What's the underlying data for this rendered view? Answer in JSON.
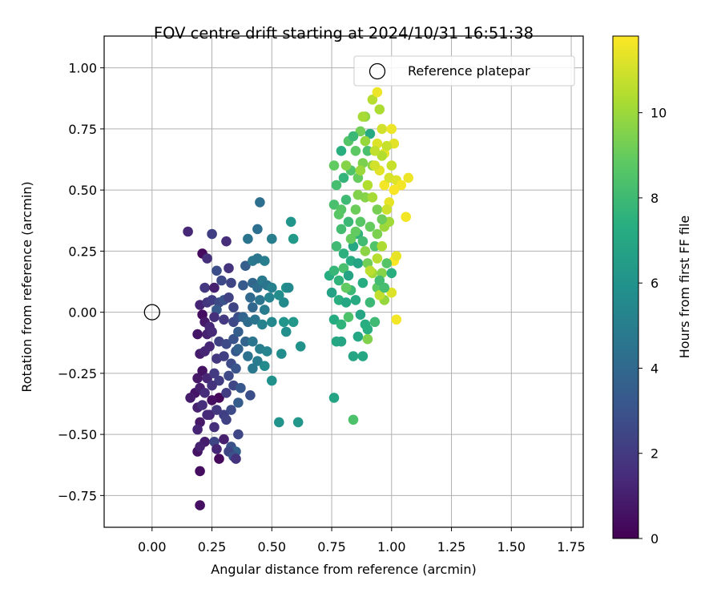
{
  "chart_data": {
    "type": "scatter",
    "title": "FOV centre drift starting at 2024/10/31 16:51:38",
    "xlabel": "Angular distance from reference (arcmin)",
    "ylabel": "Rotation from reference (arcmin)",
    "xlim": [
      -0.2,
      1.8
    ],
    "ylim": [
      -0.88,
      1.13
    ],
    "x_ticks": [
      "0.00",
      "0.25",
      "0.50",
      "0.75",
      "1.00",
      "1.25",
      "1.50",
      "1.75"
    ],
    "y_ticks": [
      "−0.75",
      "−0.50",
      "−0.25",
      "0.00",
      "0.25",
      "0.50",
      "0.75",
      "1.00"
    ],
    "grid": true,
    "legend": {
      "placement": "top-right",
      "entries": [
        "Reference platepar"
      ]
    },
    "colorbar": {
      "label": "Hours from first FF file",
      "range": [
        0,
        11.8
      ],
      "ticks": [
        "0",
        "2",
        "4",
        "6",
        "8",
        "10"
      ],
      "colormap": "viridis"
    },
    "reference_point": {
      "x": 0.0,
      "y": 0.0,
      "label": "Reference platepar"
    },
    "points": [
      [
        0.15,
        0.33,
        1.3
      ],
      [
        0.21,
        0.24,
        0.3
      ],
      [
        0.23,
        0.22,
        1.6
      ],
      [
        0.25,
        0.32,
        2.2
      ],
      [
        0.27,
        0.17,
        2.8
      ],
      [
        0.31,
        0.29,
        1.5
      ],
      [
        0.32,
        0.18,
        1.7
      ],
      [
        0.22,
        0.1,
        1.9
      ],
      [
        0.26,
        0.1,
        1.0
      ],
      [
        0.29,
        0.13,
        2.6
      ],
      [
        0.33,
        0.12,
        2.4
      ],
      [
        0.2,
        0.03,
        1.2
      ],
      [
        0.23,
        0.04,
        1.8
      ],
      [
        0.25,
        0.05,
        2.1
      ],
      [
        0.28,
        0.04,
        2.6
      ],
      [
        0.3,
        0.05,
        3.0
      ],
      [
        0.32,
        0.06,
        2.3
      ],
      [
        0.34,
        0.02,
        2.4
      ],
      [
        0.27,
        0.01,
        3.3
      ],
      [
        0.21,
        -0.01,
        0.4
      ],
      [
        0.22,
        -0.04,
        0.8
      ],
      [
        0.24,
        -0.06,
        1.3
      ],
      [
        0.26,
        -0.02,
        1.6
      ],
      [
        0.3,
        -0.03,
        2.0
      ],
      [
        0.34,
        -0.04,
        2.5
      ],
      [
        0.36,
        -0.02,
        2.8
      ],
      [
        0.19,
        -0.09,
        0.7
      ],
      [
        0.23,
        -0.09,
        1.1
      ],
      [
        0.25,
        -0.08,
        1.4
      ],
      [
        0.28,
        -0.12,
        2.3
      ],
      [
        0.31,
        -0.13,
        2.6
      ],
      [
        0.34,
        -0.11,
        3.0
      ],
      [
        0.2,
        -0.17,
        0.9
      ],
      [
        0.22,
        -0.16,
        1.2
      ],
      [
        0.24,
        -0.14,
        1.3
      ],
      [
        0.27,
        -0.19,
        1.9
      ],
      [
        0.3,
        -0.18,
        2.2
      ],
      [
        0.33,
        -0.21,
        2.7
      ],
      [
        0.35,
        -0.16,
        3.2
      ],
      [
        0.19,
        -0.27,
        0.8
      ],
      [
        0.21,
        -0.24,
        0.6
      ],
      [
        0.23,
        -0.27,
        1.3
      ],
      [
        0.26,
        -0.25,
        2.0
      ],
      [
        0.28,
        -0.28,
        2.1
      ],
      [
        0.32,
        -0.26,
        2.6
      ],
      [
        0.35,
        -0.23,
        3.1
      ],
      [
        0.18,
        -0.33,
        0.7
      ],
      [
        0.2,
        -0.31,
        1.0
      ],
      [
        0.22,
        -0.33,
        1.5
      ],
      [
        0.25,
        -0.3,
        1.7
      ],
      [
        0.28,
        -0.35,
        0.2
      ],
      [
        0.31,
        -0.33,
        2.1
      ],
      [
        0.34,
        -0.3,
        2.5
      ],
      [
        0.37,
        -0.31,
        3.2
      ],
      [
        0.16,
        -0.35,
        0.9
      ],
      [
        0.19,
        -0.39,
        1.1
      ],
      [
        0.21,
        -0.38,
        1.6
      ],
      [
        0.24,
        -0.42,
        1.2
      ],
      [
        0.27,
        -0.4,
        1.9
      ],
      [
        0.3,
        -0.42,
        2.2
      ],
      [
        0.33,
        -0.4,
        2.6
      ],
      [
        0.36,
        -0.37,
        3.4
      ],
      [
        0.2,
        -0.45,
        0.8
      ],
      [
        0.23,
        -0.42,
        1.4
      ],
      [
        0.26,
        -0.47,
        1.6
      ],
      [
        0.19,
        -0.48,
        1.2
      ],
      [
        0.22,
        -0.53,
        0.9
      ],
      [
        0.26,
        -0.53,
        2.4
      ],
      [
        0.3,
        -0.52,
        1.0
      ],
      [
        0.33,
        -0.55,
        2.9
      ],
      [
        0.35,
        -0.57,
        3.6
      ],
      [
        0.19,
        -0.57,
        0.6
      ],
      [
        0.2,
        -0.55,
        1.1
      ],
      [
        0.27,
        -0.56,
        1.2
      ],
      [
        0.32,
        -0.57,
        2.4
      ],
      [
        0.34,
        -0.59,
        2.9
      ],
      [
        0.28,
        -0.6,
        0.3
      ],
      [
        0.35,
        -0.6,
        1.7
      ],
      [
        0.2,
        -0.65,
        0.4
      ],
      [
        0.2,
        -0.79,
        0.5
      ],
      [
        0.36,
        -0.5,
        2.5
      ],
      [
        0.31,
        -0.44,
        2.3
      ],
      [
        0.41,
        -0.34,
        2.8
      ],
      [
        0.25,
        -0.36,
        0.5
      ],
      [
        0.39,
        0.19,
        3.5
      ],
      [
        0.4,
        0.3,
        4.5
      ],
      [
        0.44,
        0.34,
        4.3
      ],
      [
        0.45,
        0.45,
        4.3
      ],
      [
        0.5,
        0.3,
        5.0
      ],
      [
        0.42,
        0.21,
        4.7
      ],
      [
        0.44,
        0.22,
        4.6
      ],
      [
        0.47,
        0.21,
        5.0
      ],
      [
        0.38,
        0.11,
        3.3
      ],
      [
        0.42,
        0.12,
        3.9
      ],
      [
        0.44,
        0.1,
        4.2
      ],
      [
        0.46,
        0.13,
        4.8
      ],
      [
        0.48,
        0.11,
        4.5
      ],
      [
        0.5,
        0.1,
        5.1
      ],
      [
        0.41,
        0.06,
        4.0
      ],
      [
        0.45,
        0.05,
        4.6
      ],
      [
        0.49,
        0.06,
        5.3
      ],
      [
        0.42,
        0.02,
        3.9
      ],
      [
        0.47,
        0.01,
        4.9
      ],
      [
        0.38,
        -0.02,
        3.8
      ],
      [
        0.4,
        -0.04,
        4.1
      ],
      [
        0.43,
        -0.03,
        4.5
      ],
      [
        0.46,
        -0.05,
        5.2
      ],
      [
        0.5,
        -0.04,
        5.5
      ],
      [
        0.36,
        -0.08,
        3.5
      ],
      [
        0.39,
        -0.12,
        3.8
      ],
      [
        0.42,
        -0.12,
        4.6
      ],
      [
        0.45,
        -0.15,
        5.0
      ],
      [
        0.48,
        -0.16,
        5.3
      ],
      [
        0.36,
        -0.15,
        3.7
      ],
      [
        0.4,
        -0.18,
        4.4
      ],
      [
        0.44,
        -0.2,
        4.9
      ],
      [
        0.47,
        -0.22,
        5.6
      ],
      [
        0.5,
        -0.28,
        5.9
      ],
      [
        0.42,
        -0.23,
        4.7
      ],
      [
        0.53,
        0.07,
        5.7
      ],
      [
        0.55,
        0.04,
        5.6
      ],
      [
        0.54,
        -0.17,
        5.7
      ],
      [
        0.56,
        -0.08,
        5.8
      ],
      [
        0.59,
        -0.04,
        6.2
      ],
      [
        0.56,
        0.1,
        6.0
      ],
      [
        0.57,
        0.1,
        5.5
      ],
      [
        0.55,
        -0.04,
        6.1
      ],
      [
        0.62,
        -0.14,
        6.0
      ],
      [
        0.58,
        0.37,
        6.1
      ],
      [
        0.59,
        0.3,
        6.3
      ],
      [
        0.53,
        -0.45,
        6.0
      ],
      [
        0.61,
        -0.45,
        6.2
      ],
      [
        0.74,
        0.15,
        7.3
      ],
      [
        0.76,
        0.17,
        7.8
      ],
      [
        0.78,
        0.13,
        7.6
      ],
      [
        0.8,
        0.18,
        8.3
      ],
      [
        0.82,
        0.15,
        6.8
      ],
      [
        0.75,
        0.08,
        6.7
      ],
      [
        0.78,
        0.05,
        7.4
      ],
      [
        0.81,
        0.04,
        7.0
      ],
      [
        0.83,
        0.09,
        7.9
      ],
      [
        0.76,
        -0.03,
        7.2
      ],
      [
        0.79,
        -0.05,
        7.6
      ],
      [
        0.82,
        -0.02,
        8.4
      ],
      [
        0.77,
        0.27,
        8.0
      ],
      [
        0.8,
        0.24,
        7.5
      ],
      [
        0.83,
        0.21,
        7.2
      ],
      [
        0.79,
        0.34,
        8.1
      ],
      [
        0.82,
        0.37,
        7.9
      ],
      [
        0.76,
        0.44,
        8.3
      ],
      [
        0.79,
        0.42,
        8.6
      ],
      [
        0.81,
        0.46,
        8.0
      ],
      [
        0.77,
        0.52,
        8.2
      ],
      [
        0.8,
        0.55,
        7.7
      ],
      [
        0.83,
        0.58,
        8.5
      ],
      [
        0.76,
        0.6,
        8.9
      ],
      [
        0.79,
        0.66,
        7.4
      ],
      [
        0.82,
        0.7,
        8.6
      ],
      [
        0.77,
        -0.12,
        7.0
      ],
      [
        0.79,
        -0.12,
        6.9
      ],
      [
        0.84,
        -0.18,
        6.9
      ],
      [
        0.88,
        -0.18,
        7.0
      ],
      [
        0.76,
        -0.35,
        6.8
      ],
      [
        0.84,
        -0.44,
        8.4
      ],
      [
        0.86,
        0.32,
        7.6
      ],
      [
        0.88,
        0.29,
        8.1
      ],
      [
        0.84,
        0.27,
        7.0
      ],
      [
        0.86,
        0.2,
        6.8
      ],
      [
        0.88,
        0.12,
        7.2
      ],
      [
        0.85,
        0.05,
        7.1
      ],
      [
        0.87,
        -0.01,
        6.9
      ],
      [
        0.89,
        -0.05,
        7.3
      ],
      [
        0.86,
        -0.1,
        7.0
      ],
      [
        0.9,
        -0.07,
        7.4
      ],
      [
        0.85,
        0.42,
        9.1
      ],
      [
        0.87,
        0.37,
        8.7
      ],
      [
        0.89,
        0.47,
        9.6
      ],
      [
        0.86,
        0.55,
        9.0
      ],
      [
        0.88,
        0.61,
        9.4
      ],
      [
        0.85,
        0.66,
        8.8
      ],
      [
        0.87,
        0.74,
        9.2
      ],
      [
        0.89,
        0.8,
        9.8
      ],
      [
        0.84,
        0.72,
        7.9
      ],
      [
        0.9,
        0.66,
        8.3
      ],
      [
        0.91,
        0.73,
        7.1
      ],
      [
        0.92,
        0.6,
        9.7
      ],
      [
        0.9,
        0.52,
        10.4
      ],
      [
        0.92,
        0.47,
        10.2
      ],
      [
        0.94,
        0.42,
        9.3
      ],
      [
        0.91,
        0.35,
        9.0
      ],
      [
        0.93,
        0.27,
        8.5
      ],
      [
        0.9,
        0.2,
        9.2
      ],
      [
        0.92,
        0.16,
        10.1
      ],
      [
        0.94,
        0.1,
        8.8
      ],
      [
        0.91,
        0.04,
        7.9
      ],
      [
        0.93,
        -0.04,
        8.0
      ],
      [
        0.9,
        -0.11,
        9.5
      ],
      [
        0.92,
        0.87,
        10.5
      ],
      [
        0.94,
        0.9,
        11.5
      ],
      [
        0.95,
        0.83,
        10.3
      ],
      [
        0.96,
        0.75,
        11.0
      ],
      [
        0.94,
        0.69,
        11.2
      ],
      [
        0.97,
        0.65,
        11.4
      ],
      [
        0.95,
        0.58,
        11.3
      ],
      [
        0.97,
        0.52,
        11.6
      ],
      [
        0.99,
        0.55,
        11.1
      ],
      [
        1.0,
        0.6,
        10.8
      ],
      [
        1.01,
        0.69,
        11.3
      ],
      [
        1.0,
        0.75,
        11.5
      ],
      [
        0.97,
        0.35,
        10.0
      ],
      [
        0.99,
        0.45,
        11.4
      ],
      [
        1.01,
        0.5,
        11.7
      ],
      [
        1.02,
        0.54,
        11.2
      ],
      [
        1.04,
        0.52,
        11.6
      ],
      [
        1.07,
        0.55,
        11.5
      ],
      [
        1.06,
        0.39,
        11.6
      ],
      [
        1.01,
        0.21,
        11.8
      ],
      [
        1.02,
        0.23,
        11.4
      ],
      [
        1.0,
        0.08,
        11.2
      ],
      [
        1.02,
        -0.03,
        11.6
      ],
      [
        0.96,
        0.27,
        10.3
      ],
      [
        0.94,
        0.22,
        10.5
      ],
      [
        0.96,
        0.16,
        9.6
      ],
      [
        0.91,
        0.17,
        10.6
      ],
      [
        0.97,
        0.05,
        9.9
      ],
      [
        0.95,
        0.07,
        10.7
      ],
      [
        0.99,
        0.37,
        10.1
      ],
      [
        0.98,
        0.42,
        10.9
      ],
      [
        0.93,
        0.6,
        11.0
      ],
      [
        0.96,
        0.64,
        10.4
      ],
      [
        0.98,
        0.68,
        10.8
      ],
      [
        0.93,
        0.66,
        10.7
      ],
      [
        0.89,
        0.7,
        9.9
      ],
      [
        0.88,
        0.8,
        10.2
      ],
      [
        0.87,
        0.58,
        10.0
      ],
      [
        0.86,
        0.48,
        9.5
      ],
      [
        0.97,
        0.1,
        8.2
      ],
      [
        1.0,
        0.16,
        7.4
      ],
      [
        0.98,
        0.2,
        8.6
      ],
      [
        0.95,
        0.13,
        8.1
      ],
      [
        0.94,
        0.32,
        9.4
      ],
      [
        0.96,
        0.38,
        9.1
      ],
      [
        0.81,
        0.6,
        9.6
      ],
      [
        0.78,
        0.4,
        8.7
      ],
      [
        0.83,
        0.3,
        9.0
      ],
      [
        0.81,
        0.1,
        8.9
      ],
      [
        0.89,
        0.25,
        9.7
      ],
      [
        0.85,
        0.33,
        8.9
      ]
    ]
  }
}
